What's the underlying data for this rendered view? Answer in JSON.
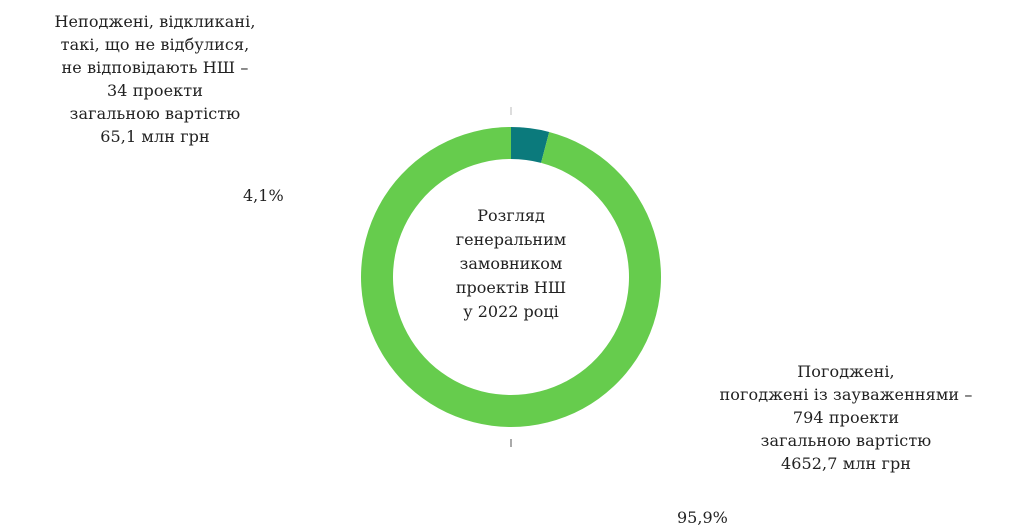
{
  "chart_data": {
    "type": "pie",
    "title": "",
    "center_label": [
      "Розгляд",
      "генеральним",
      "замовником",
      "проектів НШ",
      "у 2022 році"
    ],
    "slices": [
      {
        "label_lines": [
          "Неподжені, відкликані,",
          "такі, що не відбулися,",
          "не відповідають НШ –",
          "34 проекти",
          "загальною вартістю",
          "65,1 млн грн"
        ],
        "percent_label": "4,1%",
        "value": 4.1,
        "color": "#0b7a7c"
      },
      {
        "label_lines": [
          "Погоджені,",
          "погоджені із зауваженнями –",
          "794 проекти",
          "загальною вартістю",
          "4652,7 млн грн"
        ],
        "percent_label": "95,9%",
        "value": 95.9,
        "color": "#66cc4d"
      }
    ]
  }
}
